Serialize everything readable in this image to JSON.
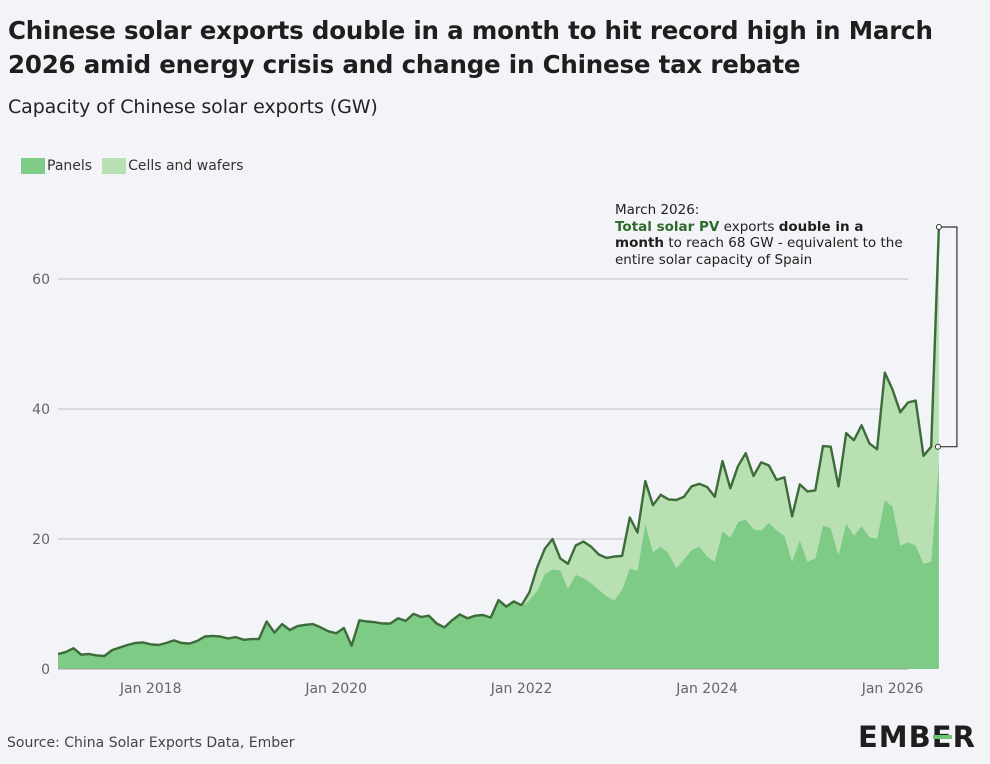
{
  "header": {
    "title": "Chinese solar exports double in a month to hit record high in March 2026 amid energy crisis and change in Chinese tax rebate",
    "subtitle": "Capacity of Chinese solar exports (GW)"
  },
  "legend": {
    "panels": "Panels",
    "cells": "Cells and wafers"
  },
  "annotation": {
    "line1": "March 2026:",
    "hl1": "Total solar PV",
    "t1": " exports ",
    "b1": "double in a month",
    "t2": " to reach 68 GW - equivalent to the entire solar capacity of Spain"
  },
  "footer": {
    "source": "Source: China Solar Exports Data, Ember",
    "logo_left": "EMB",
    "logo_e": "E",
    "logo_right": "R"
  },
  "colors": {
    "panels": "#7dcb85",
    "cells": "#b9e0b2",
    "total_line": "#3e6b3a",
    "grid": "#c8cbd1",
    "axis": "#666666"
  },
  "chart_data": {
    "type": "area",
    "title": "Chinese solar exports double in a month to hit record high in March 2026 amid energy crisis and change in Chinese tax rebate",
    "subtitle": "Capacity of Chinese solar exports (GW)",
    "xlabel": "",
    "ylabel": "",
    "x_start": "2017-01",
    "x_end": "2026-03",
    "xticks": [
      {
        "date": "2018-01",
        "label": "Jan 2018"
      },
      {
        "date": "2020-01",
        "label": "Jan 2020"
      },
      {
        "date": "2022-01",
        "label": "Jan 2022"
      },
      {
        "date": "2024-01",
        "label": "Jan 2024"
      },
      {
        "date": "2026-01",
        "label": "Jan 2026"
      }
    ],
    "yticks": [
      0,
      20,
      40,
      60
    ],
    "ylim": [
      0,
      68
    ],
    "grid": true,
    "legend_position": "top-left",
    "stacked": true,
    "series": [
      {
        "name": "Panels",
        "values": [
          2.3,
          2.6,
          3.2,
          2.2,
          2.3,
          2.1,
          2.0,
          2.9,
          3.3,
          3.7,
          4.0,
          4.1,
          3.8,
          3.7,
          4.0,
          4.4,
          4.0,
          3.9,
          4.3,
          5.0,
          5.1,
          5.0,
          4.7,
          4.9,
          4.5,
          4.6,
          4.6,
          7.3,
          5.6,
          6.9,
          6.0,
          6.6,
          6.8,
          6.9,
          6.4,
          5.8,
          5.5,
          6.3,
          3.6,
          7.5,
          7.3,
          7.2,
          7.0,
          7.0,
          7.8,
          7.4,
          8.5,
          8.0,
          8.2,
          7.0,
          6.4,
          7.5,
          8.4,
          7.8,
          8.2,
          8.3,
          7.9,
          10.6,
          9.6,
          10.4,
          9.5,
          10.6,
          12.0,
          14.6,
          15.3,
          15.2,
          12.3,
          14.5,
          14.0,
          13.2,
          12.2,
          11.2,
          10.6,
          12.2,
          15.5,
          15.1,
          22.3,
          18.0,
          18.8,
          17.8,
          15.5,
          16.8,
          18.3,
          18.8,
          17.3,
          16.5,
          21.2,
          20.2,
          22.6,
          23.0,
          21.5,
          21.3,
          22.5,
          21.3,
          20.5,
          16.5,
          19.8,
          16.5,
          17.0,
          22.1,
          21.7,
          17.5,
          22.4,
          20.5,
          22.0,
          20.3,
          20.0,
          26.0,
          25.0,
          19.0,
          19.5,
          19.0,
          16.2,
          16.5,
          32.0
        ]
      },
      {
        "name": "Cells and wafers",
        "values": [
          0,
          0,
          0,
          0,
          0,
          0,
          0,
          0,
          0,
          0,
          0,
          0,
          0,
          0,
          0,
          0,
          0,
          0,
          0,
          0,
          0,
          0,
          0,
          0,
          0,
          0,
          0,
          0,
          0,
          0,
          0,
          0,
          0,
          0,
          0,
          0,
          0,
          0,
          0,
          0,
          0,
          0,
          0,
          0,
          0,
          0,
          0,
          0,
          0,
          0,
          0,
          0,
          0,
          0,
          0,
          0,
          0,
          0,
          0,
          0,
          0.3,
          1.2,
          3.6,
          3.9,
          4.7,
          1.8,
          3.9,
          4.5,
          5.6,
          5.6,
          5.4,
          5.9,
          6.7,
          5.2,
          7.8,
          5.9,
          6.6,
          7.2,
          8.0,
          8.3,
          10.5,
          9.7,
          9.8,
          9.7,
          10.7,
          10.0,
          10.8,
          7.6,
          8.6,
          10.2,
          8.2,
          10.5,
          8.8,
          7.8,
          9.0,
          7.0,
          8.6,
          10.8,
          10.5,
          12.2,
          12.5,
          10.6,
          13.9,
          14.7,
          15.5,
          14.4,
          13.8,
          19.6,
          18.0,
          20.5,
          21.5,
          22.3,
          16.6,
          17.7,
          36.0
        ]
      }
    ],
    "annotation": {
      "text": "March 2026: Total solar PV exports double in a month to reach 68 GW - equivalent to the entire solar capacity of Spain",
      "date": "2026-03",
      "value": 68
    }
  },
  "footer_source": "Source: China Solar Exports Data, Ember"
}
